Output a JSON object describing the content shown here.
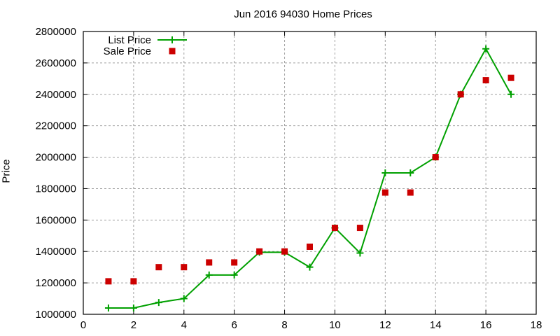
{
  "chart_data": {
    "type": "line",
    "title": "Jun 2016 94030 Home Prices",
    "xlabel": "",
    "ylabel": "Price",
    "xlim": [
      0,
      18
    ],
    "ylim": [
      1000000,
      2800000
    ],
    "xticks": [
      0,
      2,
      4,
      6,
      8,
      10,
      12,
      14,
      16,
      18
    ],
    "yticks": [
      1000000,
      1200000,
      1400000,
      1600000,
      1800000,
      2000000,
      2200000,
      2400000,
      2600000,
      2800000
    ],
    "grid": true,
    "legend_position": "top-left",
    "x": [
      1,
      2,
      3,
      4,
      5,
      6,
      7,
      8,
      9,
      10,
      11,
      12,
      13,
      14,
      15,
      16,
      17
    ],
    "series": [
      {
        "name": "List Price",
        "style": "linespoints",
        "marker": "plus",
        "color": "#00a000",
        "values": [
          1040000,
          1040000,
          1075000,
          1100000,
          1250000,
          1250000,
          1395000,
          1395000,
          1300000,
          1550000,
          1390000,
          1900000,
          1900000,
          2000000,
          2400000,
          2690000,
          2400000
        ]
      },
      {
        "name": "Sale Price",
        "style": "points",
        "marker": "square",
        "color": "#cc0000",
        "values": [
          1210000,
          1210000,
          1300000,
          1300000,
          1330000,
          1330000,
          1400000,
          1400000,
          1430000,
          1550000,
          1550000,
          1775000,
          1775000,
          2000000,
          2400000,
          2490000,
          2505000
        ]
      }
    ]
  }
}
